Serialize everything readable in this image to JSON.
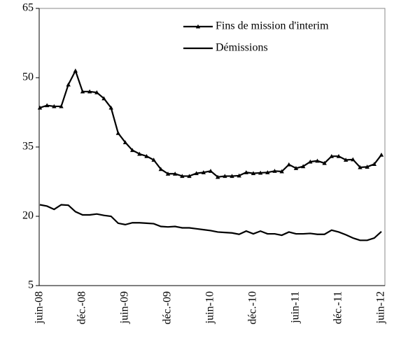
{
  "chart_data": {
    "type": "line",
    "categories": [
      "juin-08",
      null,
      null,
      null,
      null,
      null,
      "déc.-08",
      null,
      null,
      null,
      null,
      null,
      "juin-09",
      null,
      null,
      null,
      null,
      null,
      "déc.-09",
      null,
      null,
      null,
      null,
      null,
      "juin-10",
      null,
      null,
      null,
      null,
      null,
      "déc.-10",
      null,
      null,
      null,
      null,
      null,
      "juin-11",
      null,
      null,
      null,
      null,
      null,
      "déc.-11",
      null,
      null,
      null,
      null,
      null,
      "juin-12"
    ],
    "series": [
      {
        "name": "Fins de mission d'interim",
        "color": "#000000",
        "marker": "triangle",
        "values": [
          43.5,
          44,
          43.8,
          43.8,
          48.5,
          51.5,
          47,
          47,
          46.8,
          45.5,
          43.5,
          38,
          36,
          34.3,
          33.5,
          33,
          32.2,
          30.2,
          29.2,
          29.2,
          28.7,
          28.7,
          29.3,
          29.5,
          29.8,
          28.5,
          28.7,
          28.7,
          28.8,
          29.5,
          29.3,
          29.4,
          29.5,
          29.8,
          29.7,
          31.2,
          30.4,
          30.8,
          31.8,
          32,
          31.5,
          33,
          33,
          32.2,
          32.3,
          30.6,
          30.7,
          31.3,
          33.3
        ]
      },
      {
        "name": "Démissions",
        "color": "#000000",
        "values": [
          22.5,
          22.2,
          21.5,
          22.5,
          22.4,
          21,
          20.3,
          20.3,
          20.5,
          20.2,
          20,
          18.5,
          18.2,
          18.6,
          18.6,
          18.5,
          18.4,
          17.8,
          17.7,
          17.8,
          17.5,
          17.5,
          17.3,
          17.1,
          16.9,
          16.6,
          16.5,
          16.4,
          16.1,
          16.8,
          16.2,
          16.8,
          16.2,
          16.2,
          15.9,
          16.6,
          16.2,
          16.2,
          16.3,
          16.1,
          16.1,
          17,
          16.6,
          16,
          15.3,
          14.8,
          14.8,
          15.3,
          16.7
        ]
      }
    ],
    "ylim": [
      5,
      65
    ],
    "yticks": [
      5,
      20,
      35,
      50,
      65
    ],
    "grid": false,
    "legend": "upper right"
  }
}
